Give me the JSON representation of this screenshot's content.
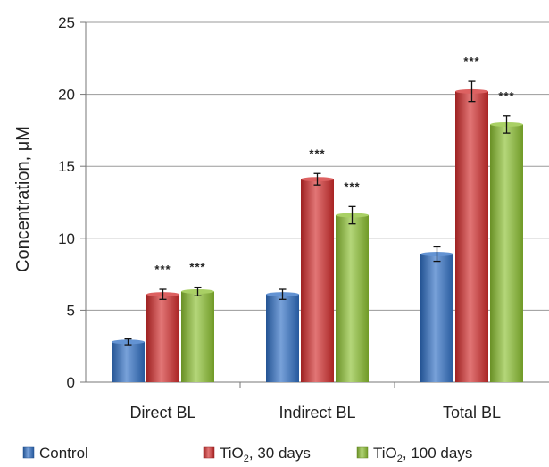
{
  "chart_data": {
    "type": "bar",
    "title": "",
    "xlabel": "",
    "ylabel": "Concentration, μM",
    "ylim": [
      0,
      25
    ],
    "yticks": [
      0,
      5,
      10,
      15,
      20,
      25
    ],
    "grid": "horizontal",
    "legend_position": "bottom",
    "categories": [
      "Direct BL",
      "Indirect BL",
      "Total BL"
    ],
    "series": [
      {
        "name": "Control",
        "legend_base": "Control",
        "legend_sub": "",
        "legend_suffix": "",
        "color": "#2f6fc4",
        "values": [
          2.8,
          6.1,
          8.9
        ],
        "errors": [
          0.2,
          0.35,
          0.5
        ],
        "annotations": [
          "",
          "",
          ""
        ]
      },
      {
        "name": "TiO₂, 30 days",
        "legend_base": "TiO",
        "legend_sub": "2",
        "legend_suffix": ", 30 days",
        "color": "#d22c2c",
        "values": [
          6.1,
          14.1,
          20.2
        ],
        "errors": [
          0.35,
          0.4,
          0.7
        ],
        "annotations": [
          "***",
          "***",
          "***"
        ]
      },
      {
        "name": "TiO₂, 100 days",
        "legend_base": "TiO",
        "legend_sub": "2",
        "legend_suffix": ", 100 days",
        "color": "#8cc031",
        "values": [
          6.3,
          11.6,
          17.9
        ],
        "errors": [
          0.3,
          0.6,
          0.6
        ],
        "annotations": [
          "***",
          "***",
          "***"
        ]
      }
    ]
  }
}
